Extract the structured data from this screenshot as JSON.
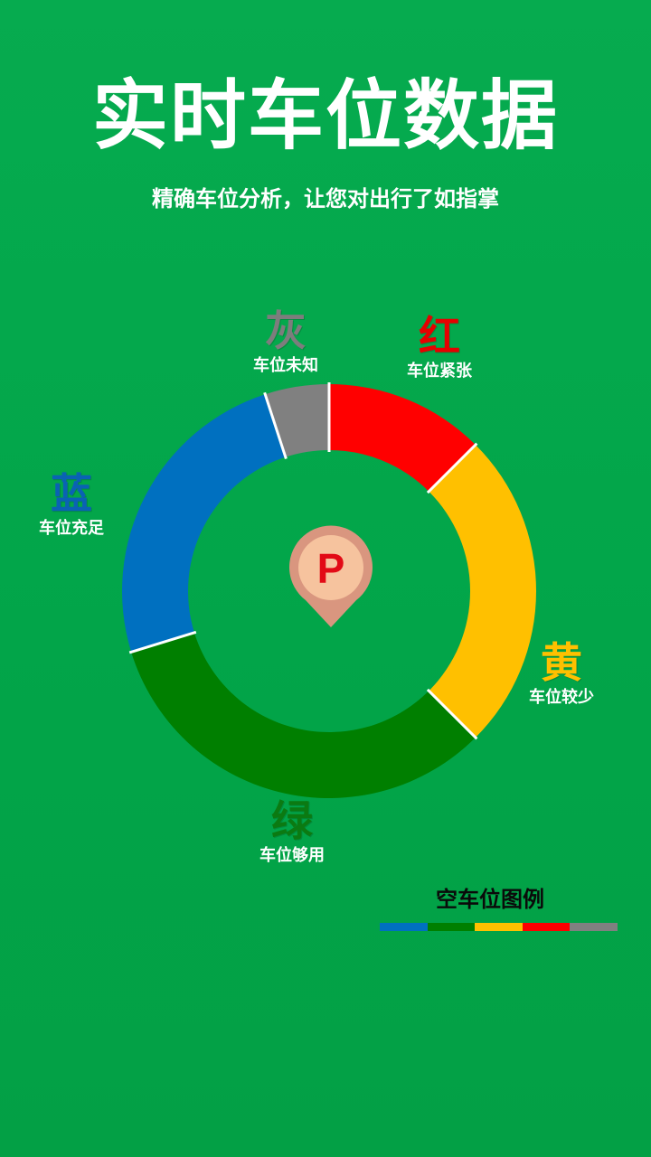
{
  "header": {
    "title": "实时车位数据",
    "subtitle": "精确车位分析，让您对出行了如指掌"
  },
  "center_icon": {
    "label": "P",
    "icon": "parking-pin-icon",
    "pin_color": "#d9967f",
    "inner_color": "#f6c39e",
    "text_color": "#e20a16"
  },
  "segments": [
    {
      "key": "red",
      "big": "红",
      "label": "车位紧张",
      "color": "#ff0000",
      "text_color": "#e60000",
      "share": 0.125
    },
    {
      "key": "yellow",
      "big": "黄",
      "label": "车位较少",
      "color": "#ffc000",
      "text_color": "#ffc000",
      "share": 0.25
    },
    {
      "key": "green",
      "big": "绿",
      "label": "车位够用",
      "color": "#007f00",
      "text_color": "#0b7a12",
      "share": 0.3275
    },
    {
      "key": "blue",
      "big": "蓝",
      "label": "车位充足",
      "color": "#0070c0",
      "text_color": "#0a62b4",
      "share": 0.2475
    },
    {
      "key": "gray",
      "big": "灰",
      "label": "车位未知",
      "color": "#808080",
      "text_color": "#7d7d7d",
      "share": 0.05
    }
  ],
  "legend": {
    "title": "空车位图例",
    "colors": [
      "#0070c0",
      "#007f00",
      "#ffc000",
      "#ff0000",
      "#808080"
    ]
  }
}
